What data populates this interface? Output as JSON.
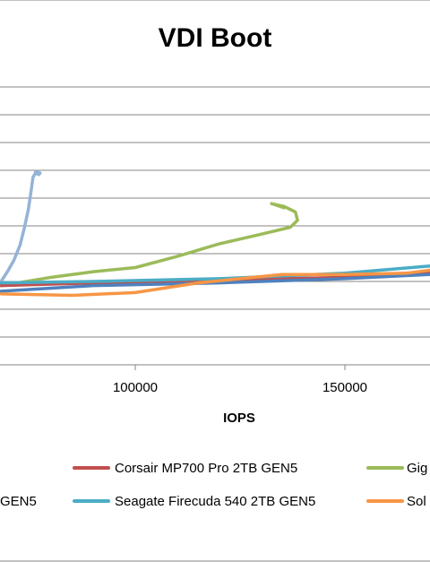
{
  "chart_data": {
    "type": "line",
    "title": "VDI Boot",
    "xlabel": "IOPS",
    "ylabel": "",
    "x_ticks": [
      100000,
      150000
    ],
    "x_tick_labels": [
      "100000",
      "150000"
    ],
    "grid": true,
    "legend_placement": "bottom",
    "series": [
      {
        "color": "#95B3D7",
        "points": [
          [
            68000,
            3.0
          ],
          [
            69500,
            3.35
          ],
          [
            71000,
            3.75
          ],
          [
            72500,
            4.3
          ],
          [
            73500,
            4.9
          ],
          [
            74500,
            5.6
          ],
          [
            75200,
            6.3
          ],
          [
            75600,
            6.75
          ],
          [
            76200,
            6.9
          ],
          [
            77000,
            6.85
          ],
          [
            76200,
            6.95
          ],
          [
            77300,
            6.9
          ]
        ]
      },
      {
        "color": "#9BBB59",
        "points": [
          [
            68000,
            2.85
          ],
          [
            80000,
            3.15
          ],
          [
            90000,
            3.35
          ],
          [
            100000,
            3.5
          ],
          [
            110000,
            3.9
          ],
          [
            120000,
            4.35
          ],
          [
            130000,
            4.7
          ],
          [
            137000,
            4.95
          ],
          [
            138700,
            5.2
          ],
          [
            138200,
            5.5
          ],
          [
            135500,
            5.7
          ],
          [
            132500,
            5.8
          ],
          [
            134500,
            5.72
          ],
          [
            133000,
            5.78
          ],
          [
            135500,
            5.65
          ]
        ]
      },
      {
        "name": "Corsair MP700 Pro 2TB GEN5",
        "color": "#C0504D",
        "points": [
          [
            68000,
            2.85
          ],
          [
            90000,
            2.95
          ],
          [
            120000,
            3.05
          ],
          [
            150000,
            3.15
          ],
          [
            170000,
            3.35
          ],
          [
            180000,
            3.45
          ]
        ]
      },
      {
        "name": "Seagate Firecuda 540 2TB GEN5",
        "color": "#4BACC6",
        "points": [
          [
            68000,
            2.95
          ],
          [
            90000,
            3.0
          ],
          [
            120000,
            3.1
          ],
          [
            150000,
            3.3
          ],
          [
            170000,
            3.55
          ],
          [
            180000,
            3.65
          ]
        ]
      },
      {
        "color": "#4F81BD",
        "points": [
          [
            68000,
            2.65
          ],
          [
            90000,
            2.85
          ],
          [
            120000,
            2.95
          ],
          [
            150000,
            3.1
          ],
          [
            170000,
            3.25
          ],
          [
            180000,
            3.3
          ]
        ]
      },
      {
        "color": "#F79646",
        "points": [
          [
            68000,
            2.55
          ],
          [
            85000,
            2.5
          ],
          [
            100000,
            2.6
          ],
          [
            115000,
            2.95
          ],
          [
            125000,
            3.1
          ],
          [
            135000,
            3.25
          ],
          [
            150000,
            3.25
          ],
          [
            165000,
            3.3
          ],
          [
            175000,
            3.5
          ],
          [
            180000,
            3.55
          ]
        ]
      }
    ],
    "legend": [
      {
        "label": "Corsair MP700 Pro 2TB GEN5",
        "color": "#C0504D"
      },
      {
        "label": "Gig",
        "color": "#9BBB59"
      },
      {
        "label": "GEN5",
        "color": ""
      },
      {
        "label": "Seagate Firecuda 540 2TB GEN5",
        "color": "#4BACC6"
      },
      {
        "label": "Sol",
        "color": "#F79646"
      }
    ]
  }
}
